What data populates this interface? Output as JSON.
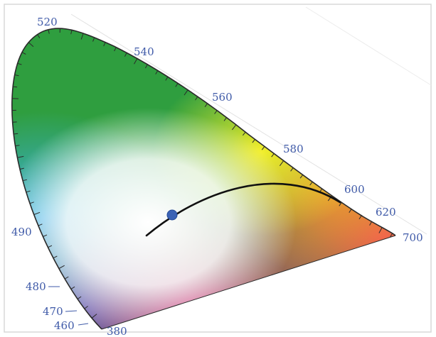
{
  "diagram": {
    "wavelength_labels": {
      "nm520": "520",
      "nm540": "540",
      "nm560": "560",
      "nm580": "580",
      "nm600": "600",
      "nm620": "620",
      "nm700": "700",
      "nm490": "490",
      "nm480": "480",
      "nm470": "470",
      "nm460": "460",
      "nm380": "380"
    },
    "colors": {
      "label_text": "#3f5aa8",
      "locus_outline": "#2a2a2a",
      "planckian_locus": "#111111",
      "white_point_marker": "#3b63b5",
      "green": "#2f9e3f",
      "yellow": "#f2ef2a",
      "orange": "#f7a12a",
      "red": "#ef4c5a",
      "magenta": "#e0267d",
      "cyan": "#3db2e6",
      "blue": "#3f6bc6",
      "white": "#ffffff"
    }
  }
}
